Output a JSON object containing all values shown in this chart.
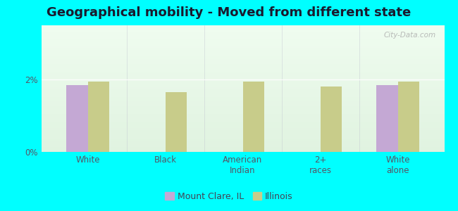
{
  "title": "Geographical mobility - Moved from different state",
  "categories": [
    "White",
    "Black",
    "American\nIndian",
    "2+\nraces",
    "White\nalone"
  ],
  "mount_clare_values": [
    1.85,
    0.0,
    0.0,
    0.0,
    1.85
  ],
  "illinois_values": [
    1.95,
    1.65,
    1.95,
    1.8,
    1.95
  ],
  "mount_clare_color": "#c4a8d4",
  "illinois_color": "#c8cc8a",
  "bar_width": 0.28,
  "ylim": [
    0,
    3.5
  ],
  "yticks": [
    0,
    2
  ],
  "ytick_labels": [
    "0%",
    "2%"
  ],
  "legend_labels": [
    "Mount Clare, IL",
    "Illinois"
  ],
  "bg_top_color": "#e8f5e8",
  "bg_bottom_color": "#d8edd8",
  "bg_top_right_color": "#f0f8f0",
  "outer_bg": "#00ffff",
  "title_fontsize": 13,
  "tick_fontsize": 8.5,
  "legend_fontsize": 9,
  "watermark_text": "City-Data.com"
}
